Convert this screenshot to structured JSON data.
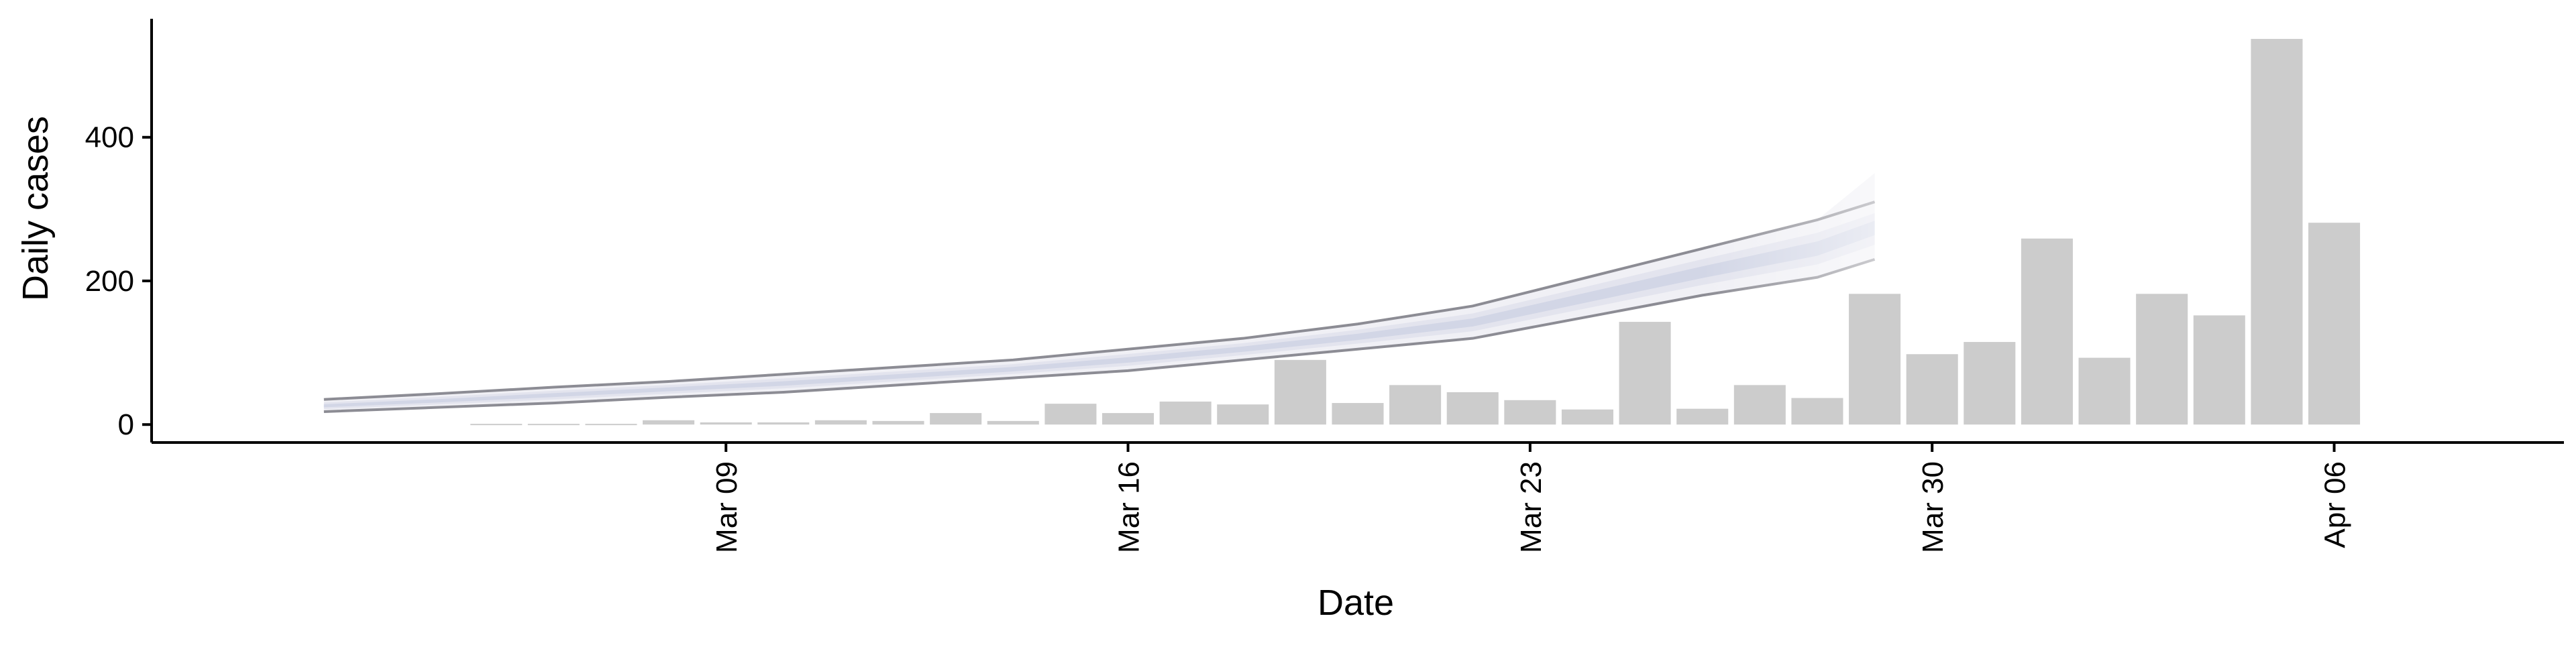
{
  "chart_data": {
    "type": "bar",
    "title": "",
    "xlabel": "Date",
    "ylabel": "Daily cases",
    "x_tick_labels": [
      "Mar 09",
      "Mar 16",
      "Mar 23",
      "Mar 30",
      "Apr 06"
    ],
    "x_tick_dates": [
      "2020-03-09",
      "2020-03-16",
      "2020-03-23",
      "2020-03-30",
      "2020-04-06"
    ],
    "y_tick_labels": [
      "0",
      "200",
      "400"
    ],
    "y_ticks": [
      0,
      200,
      400
    ],
    "xlim": [
      "2020-02-28",
      "2020-04-10"
    ],
    "ylim": [
      -25,
      565
    ],
    "grid": false,
    "legend": "none",
    "colors": {
      "bars": "#cccccc",
      "ribbon_outer": "#f0f0f5",
      "ribbon_mid": "#e3e4ee",
      "ribbon_inner": "#d2d6e6",
      "ribbon_edge": "#8c8c94"
    },
    "daily_cases": {
      "dates": [
        "2020-03-04",
        "2020-03-05",
        "2020-03-06",
        "2020-03-07",
        "2020-03-08",
        "2020-03-09",
        "2020-03-10",
        "2020-03-11",
        "2020-03-12",
        "2020-03-13",
        "2020-03-14",
        "2020-03-15",
        "2020-03-16",
        "2020-03-17",
        "2020-03-18",
        "2020-03-19",
        "2020-03-20",
        "2020-03-21",
        "2020-03-22",
        "2020-03-23",
        "2020-03-24",
        "2020-03-25",
        "2020-03-26",
        "2020-03-27",
        "2020-03-28",
        "2020-03-29",
        "2020-03-30",
        "2020-03-31",
        "2020-04-01",
        "2020-04-02",
        "2020-04-03",
        "2020-04-04",
        "2020-04-05",
        "2020-04-06",
        "2020-04-07"
      ],
      "values": [
        0,
        1,
        1,
        1,
        6,
        3,
        3,
        6,
        5,
        16,
        5,
        29,
        16,
        32,
        28,
        90,
        30,
        55,
        45,
        34,
        21,
        143,
        22,
        55,
        37,
        182,
        98,
        115,
        259,
        93,
        182,
        152,
        537,
        281,
        0
      ]
    },
    "estimate_band": {
      "dates": [
        "2020-03-02",
        "2020-03-04",
        "2020-03-06",
        "2020-03-08",
        "2020-03-10",
        "2020-03-12",
        "2020-03-14",
        "2020-03-16",
        "2020-03-18",
        "2020-03-20",
        "2020-03-22",
        "2020-03-24",
        "2020-03-26",
        "2020-03-28",
        "2020-03-29"
      ],
      "upper": [
        35,
        43,
        52,
        60,
        70,
        80,
        90,
        105,
        120,
        140,
        165,
        205,
        245,
        285,
        310
      ],
      "upper_outer_end": 350,
      "lower": [
        18,
        24,
        30,
        38,
        45,
        55,
        65,
        75,
        90,
        105,
        120,
        150,
        180,
        205,
        230
      ],
      "median": [
        26,
        33,
        41,
        49,
        57,
        67,
        77,
        90,
        105,
        122,
        142,
        177,
        212,
        245,
        275
      ],
      "projection_start": "2020-03-26"
    }
  }
}
